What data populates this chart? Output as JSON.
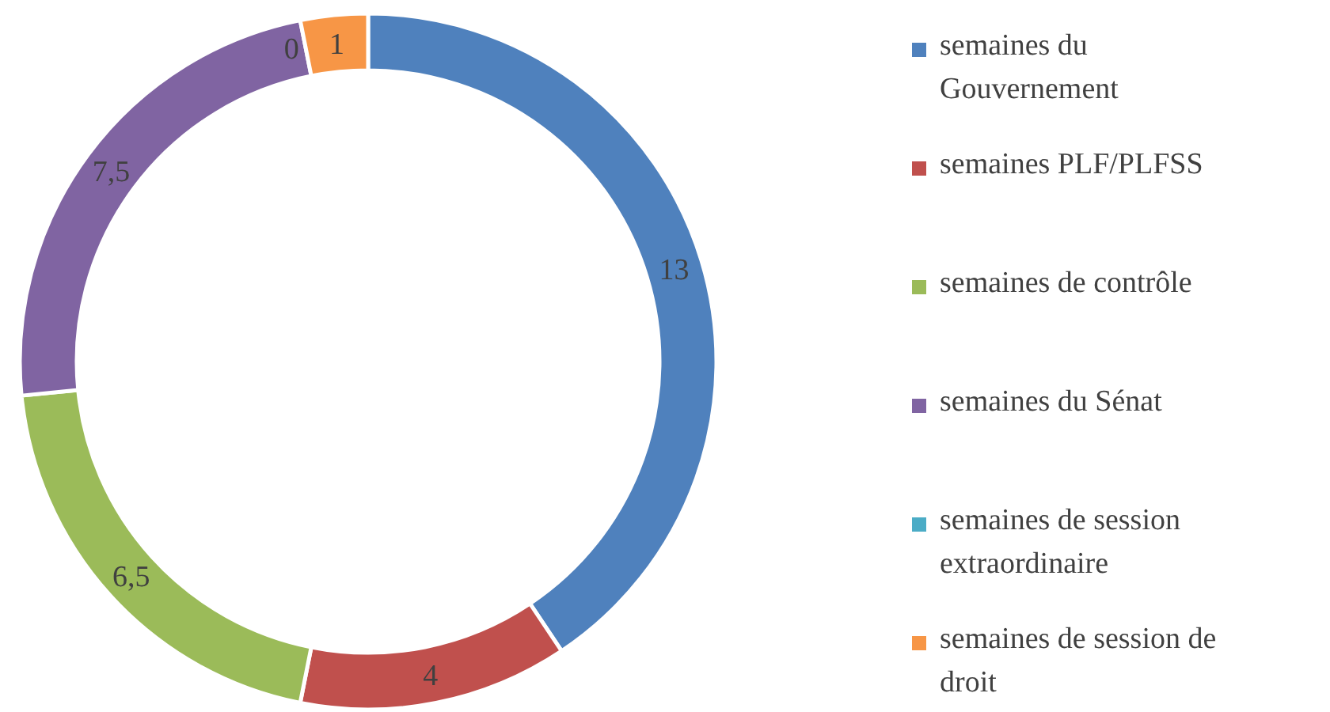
{
  "chart_data": {
    "type": "donut",
    "categories": [
      "semaines du Gouvernement",
      "semaines PLF/PLFSS",
      "semaines de contrôle",
      "semaines du Sénat",
      "semaines de session extraordinaire",
      "semaines de session de droit"
    ],
    "values": [
      13,
      4,
      6.5,
      7.5,
      0,
      1
    ],
    "colors": [
      "#4f81bd",
      "#c0504d",
      "#9bbb59",
      "#8064a2",
      "#4bacc6",
      "#f79646"
    ],
    "value_labels": [
      "13",
      "4",
      "6,5",
      "7,5",
      "0",
      "1"
    ],
    "legend": "right"
  }
}
